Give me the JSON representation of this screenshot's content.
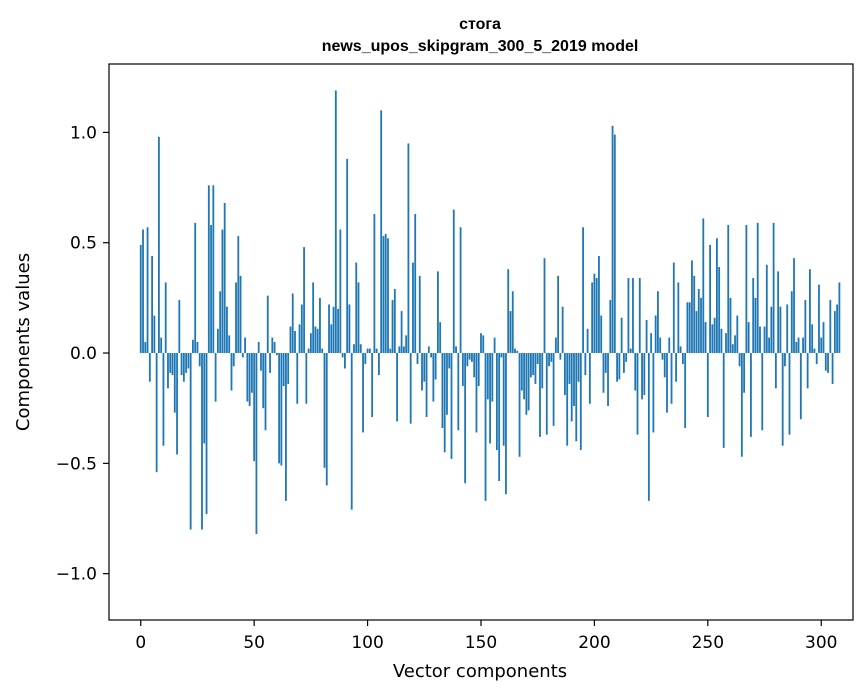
{
  "chart_data": {
    "type": "bar",
    "title": "стога",
    "subtitle": "news_upos_skipgram_300_5_2019 model",
    "xlabel": "Vector components",
    "ylabel": "Components values",
    "xlim": [
      -14,
      314
    ],
    "ylim": [
      -1.21,
      1.31
    ],
    "xticks": [
      0,
      50,
      100,
      150,
      200,
      250,
      300
    ],
    "yticks": [
      -1.0,
      -0.5,
      0.0,
      0.5,
      1.0
    ],
    "ytick_labels": [
      "−1.0",
      "−0.5",
      "0.0",
      "0.5",
      "1.0"
    ],
    "grid": false,
    "color": "#1f77b4",
    "x_start": 0,
    "values": [
      0.49,
      0.56,
      0.05,
      0.57,
      -0.13,
      0.44,
      0.17,
      -0.54,
      0.98,
      0.07,
      -0.42,
      0.32,
      -0.16,
      -0.09,
      -0.1,
      -0.27,
      -0.46,
      0.24,
      -0.1,
      -0.13,
      -0.09,
      -0.07,
      -0.8,
      0.06,
      0.59,
      0.05,
      -0.06,
      -0.8,
      -0.41,
      -0.73,
      0.76,
      0.58,
      0.76,
      -0.22,
      0.11,
      0.28,
      0.56,
      0.68,
      0.21,
      0.08,
      -0.17,
      -0.06,
      0.32,
      0.53,
      0.35,
      -0.02,
      0.07,
      -0.22,
      -0.24,
      -0.18,
      -0.49,
      -0.82,
      0.05,
      -0.08,
      -0.25,
      -0.35,
      0.26,
      -0.09,
      0.07,
      0.05,
      -0.01,
      -0.5,
      -0.51,
      -0.15,
      -0.67,
      -0.14,
      0.12,
      0.27,
      0.1,
      -0.23,
      0.13,
      0.22,
      0.48,
      -0.23,
      0.02,
      0.09,
      0.32,
      0.12,
      0.11,
      0.25,
      0.02,
      -0.52,
      -0.6,
      0.22,
      0.13,
      0.21,
      1.19,
      0.2,
      0.56,
      -0.02,
      -0.07,
      0.88,
      0.22,
      -0.71,
      0.04,
      0.41,
      0.32,
      0.04,
      -0.36,
      -0.05,
      0.02,
      0.02,
      -0.29,
      0.63,
      0.02,
      -0.1,
      1.1,
      0.53,
      0.54,
      0.52,
      0.02,
      0.24,
      0.29,
      -0.31,
      0.03,
      0.19,
      0.03,
      0.08,
      0.95,
      -0.32,
      0.41,
      0.63,
      -0.05,
      0.35,
      -0.17,
      -0.13,
      -0.29,
      0.03,
      -0.02,
      -0.22,
      -0.12,
      0.37,
      0.14,
      -0.34,
      -0.45,
      -0.28,
      -0.07,
      -0.48,
      0.65,
      0.03,
      -0.35,
      0.57,
      -0.15,
      -0.59,
      -0.06,
      -0.03,
      -0.04,
      -0.11,
      -0.36,
      -0.15,
      0.09,
      0.08,
      -0.67,
      -0.21,
      -0.41,
      -0.22,
      0.07,
      -0.44,
      -0.58,
      -0.02,
      -0.42,
      -0.64,
      0.38,
      0.19,
      0.28,
      0.02,
      0.01,
      -0.47,
      -0.17,
      -0.21,
      -0.28,
      -0.26,
      -0.11,
      -0.1,
      -0.14,
      -0.05,
      -0.38,
      -0.16,
      0.43,
      -0.37,
      -0.06,
      -0.04,
      -0.33,
      0.07,
      0.35,
      -0.03,
      0.21,
      -0.19,
      -0.42,
      -0.14,
      -0.31,
      -0.24,
      -0.4,
      -0.13,
      -0.44,
      0.57,
      -0.1,
      0.11,
      -0.23,
      0.32,
      0.36,
      0.34,
      0.44,
      0.17,
      -0.18,
      -0.09,
      -0.24,
      0.24,
      1.03,
      0.99,
      -0.13,
      -0.12,
      0.16,
      -0.09,
      -0.04,
      0.34,
      0.02,
      0.34,
      -0.17,
      -0.37,
      0.34,
      -0.21,
      -0.19,
      0.15,
      -0.67,
      0.09,
      -0.36,
      0.17,
      0.28,
      0.07,
      -0.03,
      -0.11,
      -0.27,
      0.07,
      -0.23,
      0.41,
      -0.13,
      0.32,
      0.03,
      -0.05,
      -0.34,
      0.23,
      0.23,
      0.42,
      0.35,
      0.19,
      0.29,
      0.25,
      0.61,
      0.14,
      -0.29,
      0.49,
      0.13,
      0.16,
      0.52,
      0.39,
      0.11,
      -0.43,
      0.09,
      0.58,
      0.25,
      0.04,
      0.08,
      0.17,
      -0.06,
      -0.47,
      -0.18,
      0.58,
      0.14,
      -0.38,
      0.34,
      0.25,
      0.59,
      0.12,
      -0.35,
      0.12,
      0.4,
      0.07,
      0.21,
      0.59,
      -0.16,
      0.37,
      0.21,
      -0.42,
      -0.06,
      0.22,
      -0.37,
      0.28,
      0.43,
      0.05,
      0.07,
      -0.3,
      0.07,
      0.24,
      -0.16,
      0.38,
      0.13,
      0.02,
      -0.05,
      0.31,
      0.07,
      0.14,
      -0.08,
      -0.09,
      0.24,
      -0.14,
      0.19,
      0.22,
      0.32
    ]
  }
}
